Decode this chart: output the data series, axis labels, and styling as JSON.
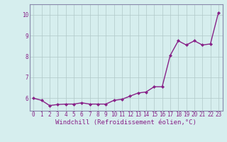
{
  "x": [
    0,
    1,
    2,
    3,
    4,
    5,
    6,
    7,
    8,
    9,
    10,
    11,
    12,
    13,
    14,
    15,
    16,
    17,
    18,
    19,
    20,
    21,
    22,
    23
  ],
  "y": [
    6.0,
    5.9,
    5.65,
    5.7,
    5.72,
    5.72,
    5.78,
    5.72,
    5.72,
    5.72,
    5.9,
    5.95,
    6.1,
    6.25,
    6.3,
    6.55,
    6.55,
    8.05,
    8.75,
    8.55,
    8.75,
    8.55,
    8.6,
    10.1
  ],
  "line_color": "#882288",
  "marker": "D",
  "marker_size": 2.0,
  "bg_color": "#d6eeee",
  "grid_color": "#b0c8c8",
  "xlabel": "Windchill (Refroidissement éolien,°C)",
  "ylim": [
    5.4,
    10.5
  ],
  "xlim": [
    -0.5,
    23.5
  ],
  "yticks": [
    6,
    7,
    8,
    9,
    10
  ],
  "xticks": [
    0,
    1,
    2,
    3,
    4,
    5,
    6,
    7,
    8,
    9,
    10,
    11,
    12,
    13,
    14,
    15,
    16,
    17,
    18,
    19,
    20,
    21,
    22,
    23
  ],
  "tick_fontsize": 5.5,
  "xlabel_fontsize": 6.5,
  "line_width": 1.0
}
